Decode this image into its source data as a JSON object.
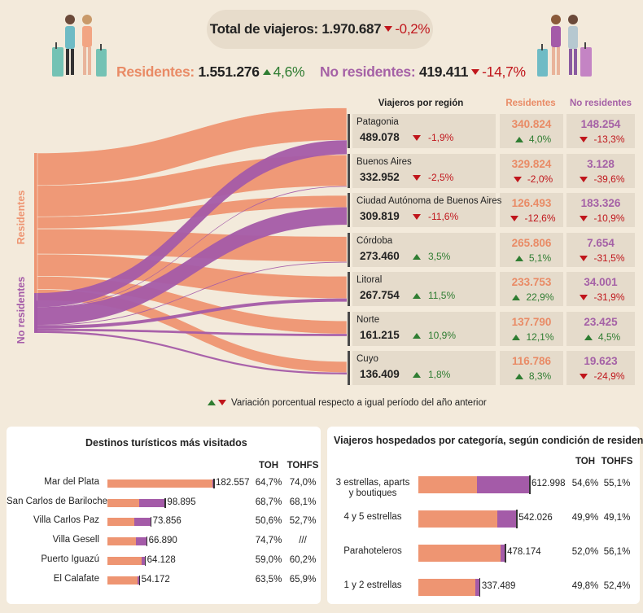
{
  "header": {
    "total_label": "Total de viajeros:",
    "total_value": "1.970.687",
    "total_var": "-0,2%",
    "res_label": "Residentes:",
    "res_value": "1.551.276",
    "res_var": "4,6%",
    "nores_label": "No residentes:",
    "nores_value": "419.411",
    "nores_var": "-14,7%"
  },
  "colors": {
    "residentes": "#ee9572",
    "no_residentes": "#a45ba8",
    "background": "#f3eadb",
    "cell": "#e5dbcb",
    "up": "#2f7d32",
    "down": "#c0161c"
  },
  "sankey": {
    "left_labels": [
      "Residentes",
      "No residentes"
    ]
  },
  "table": {
    "headers": [
      "Viajeros por región",
      "Residentes",
      "No residentes"
    ],
    "rows": [
      {
        "region": "Patagonia",
        "total": "489.078",
        "var": "-1,9%",
        "var_dir": "down",
        "res": "340.824",
        "res_var": "4,0%",
        "res_dir": "up",
        "nores": "148.254",
        "nores_var": "-13,3%",
        "nores_dir": "down"
      },
      {
        "region": "Buenos Aires",
        "total": "332.952",
        "var": "-2,5%",
        "var_dir": "down",
        "res": "329.824",
        "res_var": "-2,0%",
        "res_dir": "down",
        "nores": "3.128",
        "nores_var": "-39,6%",
        "nores_dir": "down"
      },
      {
        "region": "Ciudad Autónoma de Buenos Aires",
        "total": "309.819",
        "var": "-11,6%",
        "var_dir": "down",
        "res": "126.493",
        "res_var": "-12,6%",
        "res_dir": "down",
        "nores": "183.326",
        "nores_var": "-10,9%",
        "nores_dir": "down"
      },
      {
        "region": "Córdoba",
        "total": "273.460",
        "var": "3,5%",
        "var_dir": "up",
        "res": "265.806",
        "res_var": "5,1%",
        "res_dir": "up",
        "nores": "7.654",
        "nores_var": "-31,5%",
        "nores_dir": "down"
      },
      {
        "region": "Litoral",
        "total": "267.754",
        "var": "11,5%",
        "var_dir": "up",
        "res": "233.753",
        "res_var": "22,9%",
        "res_dir": "up",
        "nores": "34.001",
        "nores_var": "-31,9%",
        "nores_dir": "down"
      },
      {
        "region": "Norte",
        "total": "161.215",
        "var": "10,9%",
        "var_dir": "up",
        "res": "137.790",
        "res_var": "12,1%",
        "res_dir": "up",
        "nores": "23.425",
        "nores_var": "4,5%",
        "nores_dir": "up"
      },
      {
        "region": "Cuyo",
        "total": "136.409",
        "var": "1,8%",
        "var_dir": "up",
        "res": "116.786",
        "res_var": "8,3%",
        "res_dir": "up",
        "nores": "19.623",
        "nores_var": "-24,9%",
        "nores_dir": "down"
      }
    ]
  },
  "legend_note": "Variación porcentual respecto a igual período del año anterior",
  "chart_data": [
    {
      "type": "sankey",
      "title": "Viajeros por región",
      "sources": [
        "Residentes",
        "No residentes"
      ],
      "targets": [
        "Patagonia",
        "Buenos Aires",
        "Ciudad Autónoma de Buenos Aires",
        "Córdoba",
        "Litoral",
        "Norte",
        "Cuyo"
      ],
      "series": [
        {
          "name": "Residentes",
          "values": [
            340824,
            329824,
            126493,
            265806,
            233753,
            137790,
            116786
          ]
        },
        {
          "name": "No residentes",
          "values": [
            148254,
            3128,
            183326,
            7654,
            34001,
            23425,
            19623
          ]
        }
      ]
    },
    {
      "type": "bar",
      "title": "Destinos turísticos más visitados",
      "categories": [
        "Mar del Plata",
        "San Carlos de Bariloche",
        "Villa Carlos Paz",
        "Villa Gesell",
        "Puerto Iguazú",
        "El Calafate"
      ],
      "values": [
        182557,
        98895,
        73856,
        66890,
        64128,
        54172
      ],
      "labels": [
        "182.557",
        "98.895",
        "73.856",
        "66.890",
        "64.128",
        "54.172"
      ],
      "res_share": [
        0.99,
        0.55,
        0.62,
        0.74,
        0.91,
        0.96
      ],
      "columns": [
        "TOH",
        "TOHFS"
      ],
      "toh": [
        "64,7%",
        "68,7%",
        "50,6%",
        "74,7%",
        "59,0%",
        "63,5%"
      ],
      "tohfs": [
        "74,0%",
        "68,1%",
        "52,7%",
        "///",
        "60,2%",
        "65,9%"
      ]
    },
    {
      "type": "bar",
      "title": "Viajeros hospedados por categoría, según condición de residencia",
      "categories": [
        "3 estrellas, aparts y boutiques",
        "4 y 5 estrellas",
        "Parahoteleros",
        "1 y 2 estrellas"
      ],
      "values": [
        612998,
        542026,
        478174,
        337489
      ],
      "labels": [
        "612.998",
        "542.026",
        "478.174",
        "337.489"
      ],
      "res_share": [
        0.53,
        0.81,
        0.95,
        0.93
      ],
      "columns": [
        "TOH",
        "TOHFS"
      ],
      "toh": [
        "54,6%",
        "49,9%",
        "52,0%",
        "49,8%"
      ],
      "tohfs": [
        "55,1%",
        "49,1%",
        "56,1%",
        "52,4%"
      ]
    }
  ]
}
